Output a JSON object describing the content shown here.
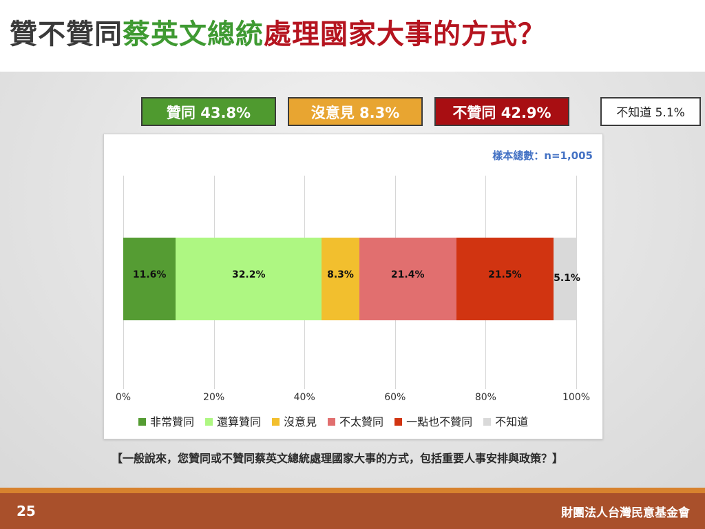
{
  "title": {
    "part1": "贊不贊同",
    "part2": "蔡英文總統",
    "part3": "處理國家大事的方式？"
  },
  "summary": {
    "approve": "贊同 43.8%",
    "neutral": "沒意見 8.3%",
    "disapprove": "不贊同 42.9%",
    "unknown": "不知道 5.1%"
  },
  "colors": {
    "approve_box": "#4f9a2f",
    "neutral_box": "#e8a531",
    "disapprove_box": "#a80e12",
    "unknown_box": "#ffffff"
  },
  "sample_size": "樣本總數：n=1,005",
  "chart_data": {
    "type": "bar",
    "orientation": "horizontal-stacked",
    "series": [
      {
        "name": "非常贊同",
        "value": 11.6,
        "label": "11.6%",
        "color": "#559c33"
      },
      {
        "name": "還算贊同",
        "value": 32.2,
        "label": "32.2%",
        "color": "#aef782"
      },
      {
        "name": "沒意見",
        "value": 8.3,
        "label": "8.3%",
        "color": "#f2bf2e"
      },
      {
        "name": "不太贊同",
        "value": 21.4,
        "label": "21.4%",
        "color": "#e16f6f"
      },
      {
        "name": "一點也不贊同",
        "value": 21.5,
        "label": "21.5%",
        "color": "#d13411"
      },
      {
        "name": "不知道",
        "value": 5.1,
        "label": "5.1%",
        "color": "#d9d9d9"
      }
    ],
    "xlim": [
      0,
      100
    ],
    "ticks": [
      "0%",
      "20%",
      "40%",
      "60%",
      "80%",
      "100%"
    ],
    "grid": true,
    "legend": "bottom"
  },
  "question": "【一般說來，您贊同或不贊同蔡英文總統處理國家大事的方式，包括重要人事安排與政策？】",
  "footer": {
    "page": "25",
    "org": "財團法人台灣民意基金會"
  }
}
